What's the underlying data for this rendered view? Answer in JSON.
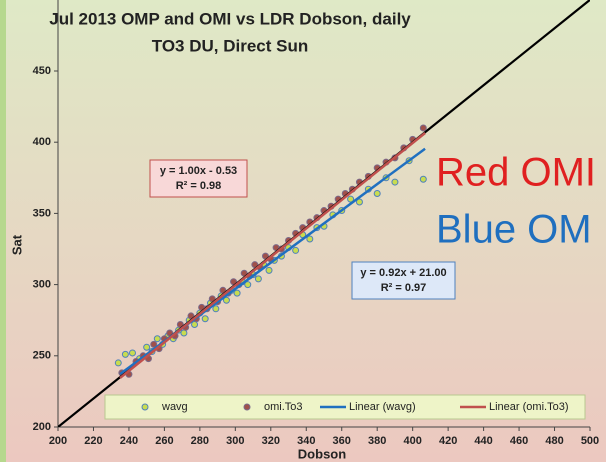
{
  "chart_data": {
    "type": "scatter",
    "title": "Jul 2013 OMP and OMI vs LDR Dobson, daily",
    "subtitle": "TO3 DU, Direct Sun",
    "x_label": "Dobson",
    "y_label": "Sat",
    "xlim": [
      200,
      500
    ],
    "ylim": [
      200,
      500
    ],
    "xticks": [
      200,
      220,
      240,
      260,
      280,
      300,
      320,
      340,
      360,
      380,
      400,
      420,
      440,
      460,
      480,
      500
    ],
    "yticks": [
      200,
      250,
      300,
      350,
      400,
      450
    ],
    "series": [
      {
        "name": "wavg",
        "color": "#c8dc50",
        "stroke": "#4f81bd",
        "x": [
          234,
          238,
          242,
          246,
          250,
          253,
          256,
          259,
          262,
          265,
          268,
          271,
          274,
          277,
          280,
          283,
          286,
          289,
          292,
          295,
          298,
          301,
          304,
          307,
          310,
          313,
          316,
          319,
          322,
          326,
          330,
          334,
          338,
          342,
          346,
          350,
          355,
          360,
          365,
          370,
          375,
          380,
          385,
          390,
          398,
          406
        ],
        "values": [
          245,
          251,
          252,
          248,
          256,
          253,
          262,
          258,
          264,
          262,
          268,
          266,
          275,
          272,
          280,
          276,
          287,
          283,
          292,
          289,
          296,
          294,
          302,
          300,
          307,
          304,
          314,
          310,
          317,
          320,
          326,
          324,
          335,
          332,
          340,
          341,
          349,
          352,
          360,
          358,
          367,
          364,
          375,
          372,
          387,
          374
        ]
      },
      {
        "name": "omi.To3",
        "color": "#a0504a",
        "stroke": "#7a6a8a",
        "x": [
          236,
          240,
          244,
          248,
          251,
          254,
          257,
          260,
          263,
          266,
          269,
          272,
          275,
          278,
          281,
          284,
          287,
          290,
          293,
          296,
          299,
          302,
          305,
          308,
          311,
          314,
          317,
          320,
          323,
          326,
          330,
          334,
          338,
          342,
          346,
          350,
          354,
          358,
          362,
          366,
          370,
          375,
          380,
          385,
          390,
          395,
          400,
          406
        ],
        "values": [
          238,
          237,
          246,
          250,
          248,
          258,
          255,
          262,
          266,
          264,
          272,
          270,
          278,
          276,
          284,
          283,
          290,
          288,
          296,
          294,
          302,
          300,
          308,
          306,
          314,
          312,
          320,
          318,
          326,
          325,
          331,
          336,
          340,
          344,
          347,
          352,
          355,
          360,
          364,
          367,
          372,
          376,
          382,
          386,
          389,
          396,
          402,
          410
        ]
      }
    ],
    "trendlines": [
      {
        "name": "Linear (wavg)",
        "color": "#2070c0",
        "slope": 0.92,
        "intercept": 21.0,
        "x_range": [
          235,
          407
        ],
        "equation": "y = 0.92x + 21.00",
        "r2": "R² = 0.97"
      },
      {
        "name": "Linear (omi.To3)",
        "color": "#c0504d",
        "slope": 1.0,
        "intercept": -0.53,
        "x_range": [
          235,
          407
        ],
        "equation": "y = 1.00x - 0.53",
        "r2": "R² = 0.98"
      }
    ],
    "reference_line": {
      "slope": 1,
      "intercept": 0,
      "color": "#000000"
    },
    "annotations": [
      {
        "text": "Red OMI",
        "color": "#e02020"
      },
      {
        "text": "Blue OM",
        "color": "#1f6fbf"
      }
    ],
    "legend": "bottom"
  }
}
